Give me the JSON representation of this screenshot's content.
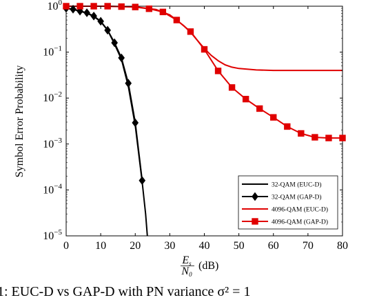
{
  "chart_data": {
    "type": "line",
    "ylabel": "Symbol Error Probability",
    "xlabel_frac_num": "E",
    "xlabel_frac_num_sub": "s",
    "xlabel_frac_den": "N",
    "xlabel_frac_den_sub": "0",
    "xlabel_unit": "(dB)",
    "xlim": [
      0,
      80
    ],
    "ylim": [
      1e-05,
      1
    ],
    "yscale": "log",
    "xticks": [
      0,
      10,
      20,
      30,
      40,
      50,
      60,
      70,
      80
    ],
    "yticks": [
      {
        "value": 1,
        "base": "10",
        "exp": "0"
      },
      {
        "value": 0.1,
        "base": "10",
        "exp": "−1"
      },
      {
        "value": 0.01,
        "base": "10",
        "exp": "−2"
      },
      {
        "value": 0.001,
        "base": "10",
        "exp": "−3"
      },
      {
        "value": 0.0001,
        "base": "10",
        "exp": "−4"
      },
      {
        "value": 1e-05,
        "base": "10",
        "exp": "−5"
      }
    ],
    "grid": false,
    "legend_position": "bottom-right",
    "series": [
      {
        "name": "32-QAM (EUC-D)",
        "color": "#000000",
        "marker": "none",
        "x": [
          0,
          2,
          4,
          6,
          8,
          10,
          12,
          14,
          16,
          18,
          20,
          22,
          23,
          23.5
        ],
        "y": [
          0.9,
          0.85,
          0.78,
          0.7,
          0.6,
          0.46,
          0.3,
          0.15,
          0.07,
          0.018,
          0.0025,
          0.00015,
          3e-05,
          1e-05
        ]
      },
      {
        "name": "32-QAM (GAP-D)",
        "color": "#000000",
        "marker": "diamond",
        "x": [
          0,
          2,
          4,
          6,
          8,
          10,
          12,
          14,
          16,
          18,
          20,
          22
        ],
        "y": [
          0.9,
          0.86,
          0.78,
          0.72,
          0.61,
          0.47,
          0.3,
          0.16,
          0.075,
          0.021,
          0.0029,
          0.00016
        ]
      },
      {
        "name": "4096-QAM (EUC-D)",
        "color": "#e00000",
        "marker": "none",
        "x": [
          0,
          10,
          20,
          26,
          30,
          34,
          36,
          38,
          40,
          42,
          44,
          46,
          48,
          50,
          55,
          60,
          70,
          80
        ],
        "y": [
          1,
          1,
          0.97,
          0.85,
          0.65,
          0.38,
          0.27,
          0.18,
          0.12,
          0.085,
          0.065,
          0.053,
          0.047,
          0.044,
          0.041,
          0.04,
          0.04,
          0.04
        ]
      },
      {
        "name": "4096-QAM (GAP-D)",
        "color": "#e00000",
        "marker": "square",
        "x": [
          0,
          4,
          8,
          12,
          16,
          20,
          24,
          28,
          32,
          36,
          40,
          44,
          48,
          52,
          56,
          60,
          64,
          68,
          72,
          76,
          80
        ],
        "y": [
          1,
          1,
          1,
          1,
          0.98,
          0.96,
          0.88,
          0.75,
          0.5,
          0.28,
          0.115,
          0.039,
          0.017,
          0.0095,
          0.0059,
          0.0038,
          0.0024,
          0.0017,
          0.0014,
          0.00135,
          0.00135
        ]
      }
    ]
  },
  "caption_fragment": "1: EUC-D vs GAP-D with PN variance σ² = 1"
}
